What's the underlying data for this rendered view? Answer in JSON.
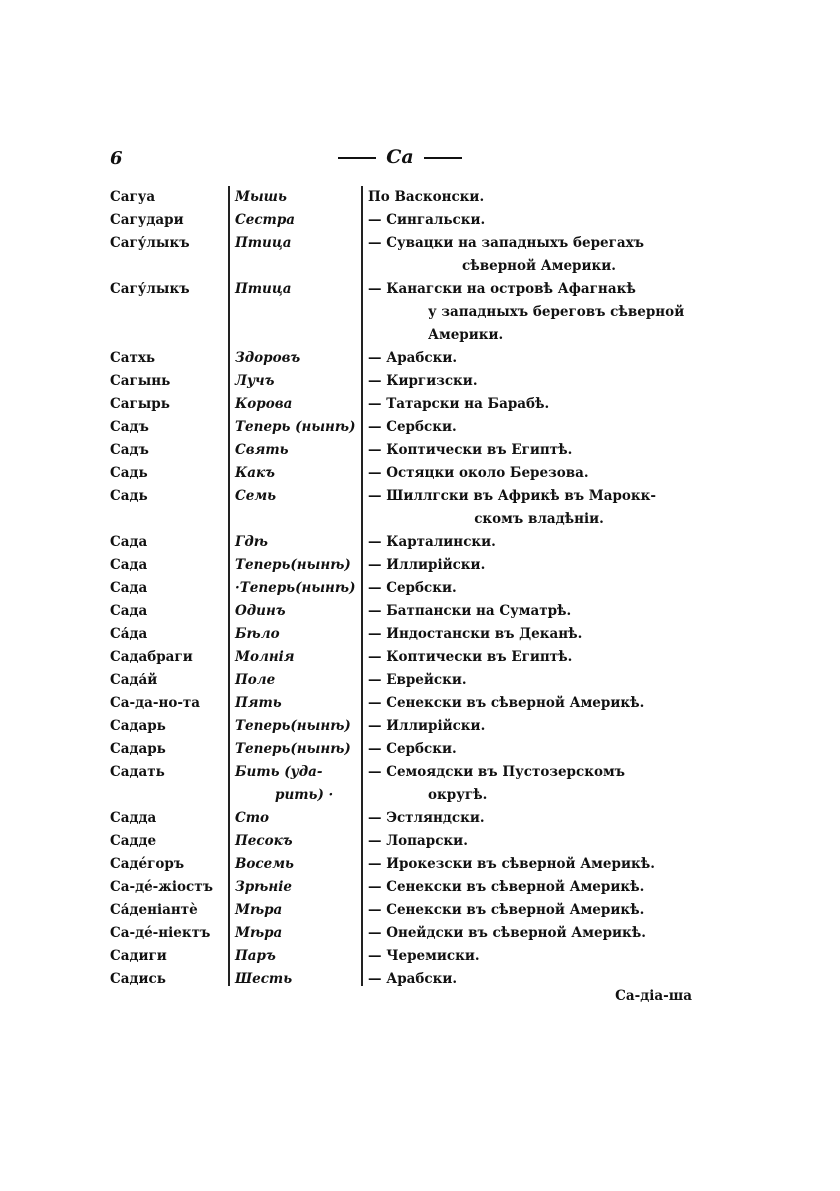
{
  "page_number": "6",
  "running_head": "Са",
  "entries": [
    {
      "word": "Сагуа",
      "meaning": [
        "Мышь"
      ],
      "lang": [
        "По Васконски."
      ]
    },
    {
      "word": "Сагудари",
      "meaning": [
        "Сестра"
      ],
      "lang": [
        "— Сингальски."
      ]
    },
    {
      "word": "Сагу́лыкъ",
      "meaning": [
        "Птица"
      ],
      "lang": [
        "— Сувацки на западныхъ берегахъ",
        "сѣверной Америки."
      ]
    },
    {
      "word": "Сагу́лыкъ",
      "meaning": [
        "Птица"
      ],
      "lang": [
        "— Канагски на островѣ Афагнакѣ",
        "у западныхъ береговъ сѣверной",
        "Америки."
      ]
    },
    {
      "word": "Сатхь",
      "meaning": [
        "Здоровъ"
      ],
      "lang": [
        "— Арабски."
      ]
    },
    {
      "word": "Сагынь",
      "meaning": [
        "Лучъ"
      ],
      "lang": [
        "— Киргизски."
      ]
    },
    {
      "word": "Сагырь",
      "meaning": [
        "Корова"
      ],
      "lang": [
        "— Татарски на Барабѣ."
      ]
    },
    {
      "word": "Садъ",
      "meaning": [
        "Теперь (нынѣ)"
      ],
      "lang": [
        "— Сербски."
      ]
    },
    {
      "word": "Садъ",
      "meaning": [
        "Свять"
      ],
      "lang": [
        "— Коптически въ Египтѣ."
      ]
    },
    {
      "word": "Садь",
      "meaning": [
        "Какъ"
      ],
      "lang": [
        "— Остяцки около Березова."
      ]
    },
    {
      "word": "Садь",
      "meaning": [
        "Семь"
      ],
      "lang": [
        "— Шиллгски въ Африкѣ въ Марокк-",
        "скомъ владѣніи."
      ]
    },
    {
      "word": "Сада",
      "meaning": [
        "Гдѣ"
      ],
      "lang": [
        "— Карталински."
      ]
    },
    {
      "word": "Сада",
      "meaning": [
        "Теперь(нынѣ)"
      ],
      "lang": [
        "— Иллирійски."
      ]
    },
    {
      "word": "Сада",
      "meaning": [
        "·Теперь(нынѣ)"
      ],
      "lang": [
        "— Сербски."
      ]
    },
    {
      "word": "Сада",
      "meaning": [
        "Одинъ"
      ],
      "lang": [
        "— Батпански на Суматрѣ."
      ]
    },
    {
      "word": "Са́да",
      "meaning": [
        "Бѣло"
      ],
      "lang": [
        "— Индостански въ Деканѣ."
      ]
    },
    {
      "word": "Садабраги",
      "meaning": [
        "Молнія"
      ],
      "lang": [
        "— Коптически въ Египтѣ."
      ]
    },
    {
      "word": "Сада́й",
      "meaning": [
        "Поле"
      ],
      "lang": [
        "— Еврейски."
      ]
    },
    {
      "word": "Са-да-но-та",
      "meaning": [
        "Пять"
      ],
      "lang": [
        "— Сенекски въ сѣверной Америкѣ."
      ]
    },
    {
      "word": "Садарь",
      "meaning": [
        "Теперь(нынѣ)"
      ],
      "lang": [
        "— Иллирійски."
      ]
    },
    {
      "word": "Садарь",
      "meaning": [
        "Теперь(нынѣ)"
      ],
      "lang": [
        "— Сербски."
      ]
    },
    {
      "word": "Садать",
      "meaning": [
        "Бить (уда-",
        "рить) ·"
      ],
      "lang": [
        "— Семоядски въ Пустозерскомъ",
        "округѣ."
      ]
    },
    {
      "word": "Садда",
      "meaning": [
        "Сто"
      ],
      "lang": [
        "— Эстляндски."
      ]
    },
    {
      "word": "Садде",
      "meaning": [
        "Песокъ"
      ],
      "lang": [
        "— Лопарски."
      ]
    },
    {
      "word": "Садéгоръ",
      "meaning": [
        "Восемь"
      ],
      "lang": [
        "— Ирокезски въ сѣверной Америкѣ."
      ]
    },
    {
      "word": "Са-дé-жіостъ",
      "meaning": [
        "Зрѣніе"
      ],
      "lang": [
        "— Сенекски въ сѣверной Америкѣ."
      ]
    },
    {
      "word": "Са́деніантѐ",
      "meaning": [
        "Мѣра"
      ],
      "lang": [
        "— Сенекски въ сѣверной Америкѣ."
      ]
    },
    {
      "word": "Са-дé-ніектъ",
      "meaning": [
        "Мѣра"
      ],
      "lang": [
        "— Онейдски въ сѣверной Америкѣ."
      ]
    },
    {
      "word": "Садиги",
      "meaning": [
        "Паръ"
      ],
      "lang": [
        "— Черемиски."
      ]
    },
    {
      "word": "Садись",
      "meaning": [
        "Шесть"
      ],
      "lang": [
        "— Арабски."
      ]
    }
  ],
  "catchword": "Са-діа-ша"
}
